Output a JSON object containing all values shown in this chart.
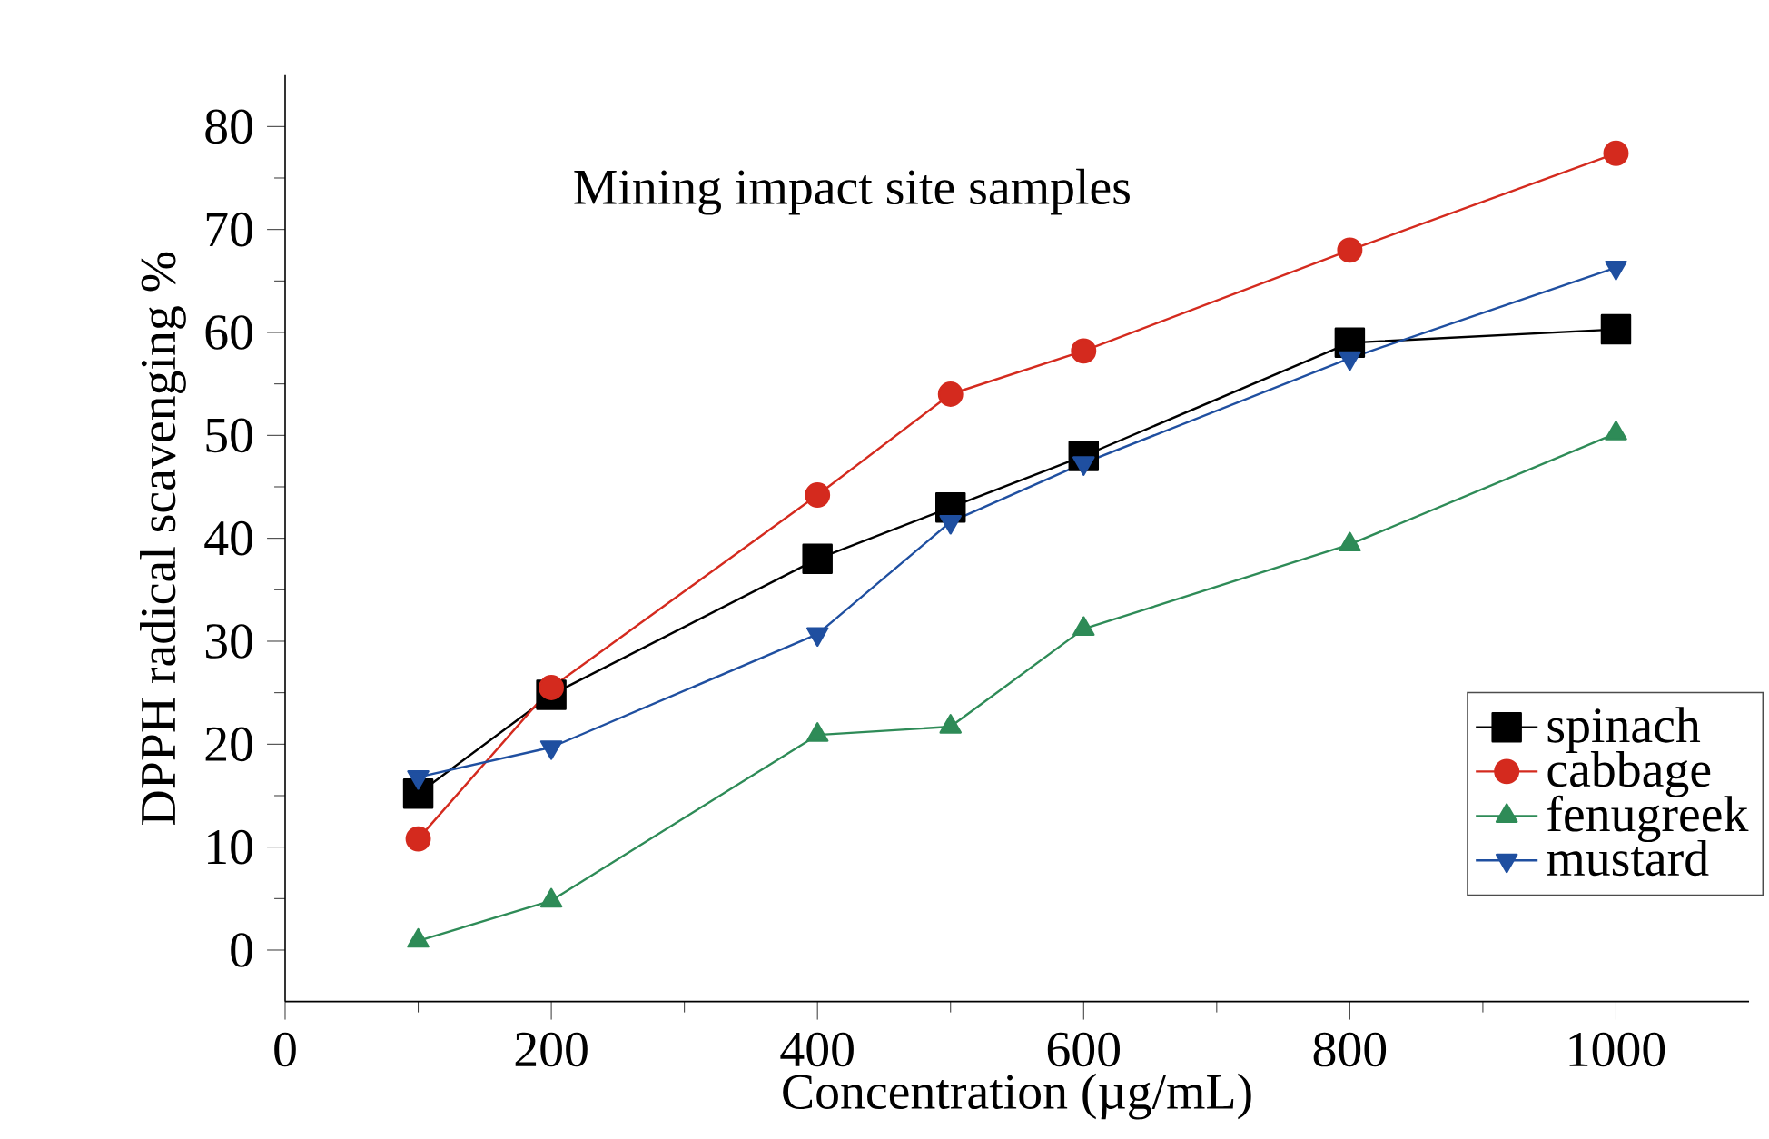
{
  "chart_data": {
    "type": "line",
    "title": "Mining impact site samples",
    "xlabel": "Concentration (µg/mL)",
    "ylabel": "DPPH radical scavenging %",
    "x": [
      100,
      200,
      400,
      500,
      600,
      800,
      1000
    ],
    "series": [
      {
        "name": "spinach",
        "color": "#000000",
        "marker": "square",
        "values": [
          15.2,
          24.8,
          38,
          43,
          48,
          59,
          60.3
        ]
      },
      {
        "name": "cabbage",
        "color": "#d42a1e",
        "marker": "circle",
        "values": [
          10.8,
          25.5,
          44.2,
          54,
          58.2,
          68,
          77.4
        ]
      },
      {
        "name": "fenugreek",
        "color": "#2e8b57",
        "marker": "triangle",
        "values": [
          0.9,
          4.8,
          20.9,
          21.7,
          31.2,
          39.4,
          50.2
        ]
      },
      {
        "name": "mustard",
        "color": "#1f4fa0",
        "marker": "triangle-down",
        "values": [
          16.8,
          19.7,
          30.7,
          41.6,
          47.3,
          57.5,
          66.3
        ]
      }
    ],
    "xlim": [
      0,
      1100
    ],
    "ylim": [
      -5,
      85
    ],
    "xticks": [
      0,
      200,
      400,
      600,
      800,
      1000
    ],
    "yticks": [
      0,
      10,
      20,
      30,
      40,
      50,
      60,
      70,
      80
    ],
    "grid": false,
    "legend": "bottom right"
  }
}
